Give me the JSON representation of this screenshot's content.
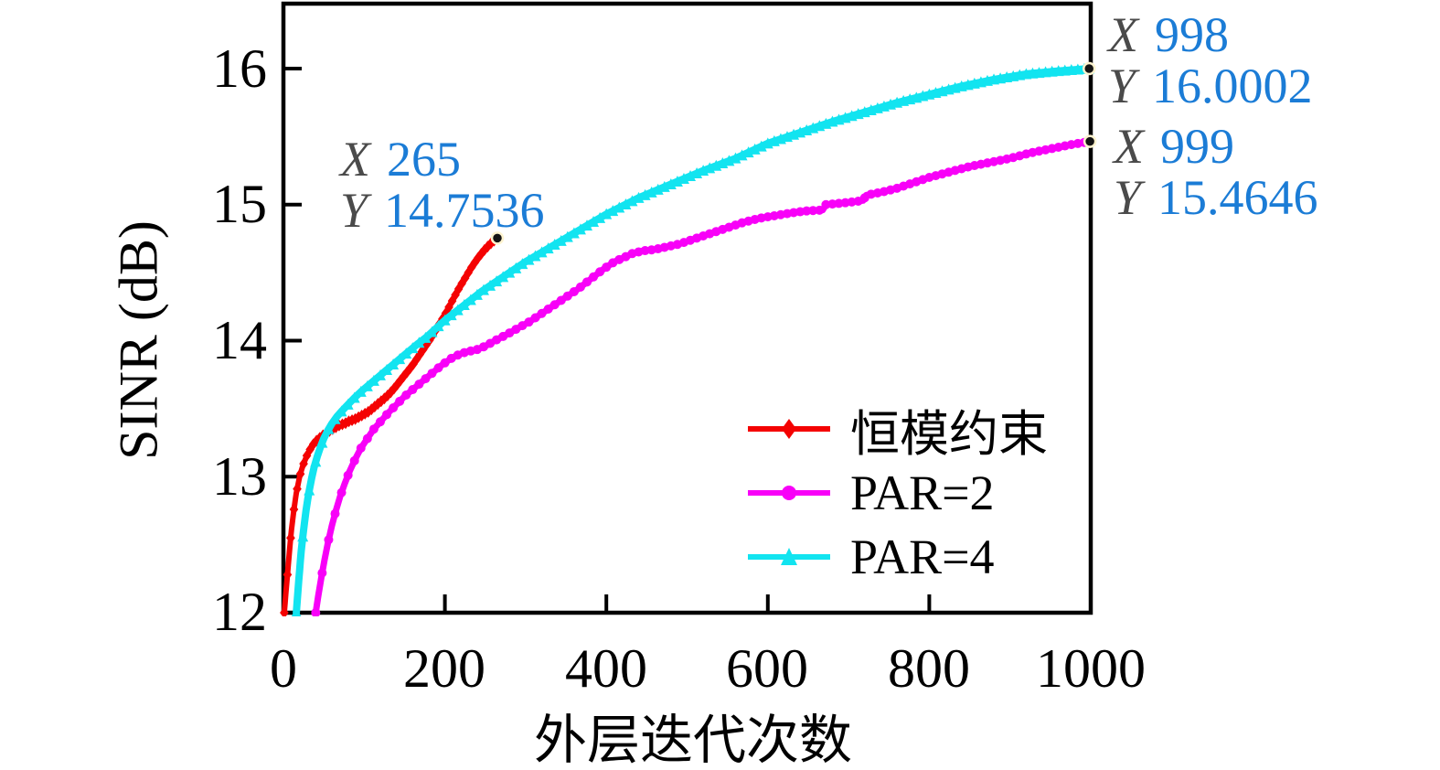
{
  "axes": {
    "xlabel": "外层迭代次数",
    "ylabel": "SINR (dB)",
    "x_tick_labels": [
      "0",
      "200",
      "400",
      "600",
      "800",
      "1000"
    ],
    "y_tick_labels": [
      "12",
      "13",
      "14",
      "15",
      "16"
    ],
    "x_ticks": [
      0,
      200,
      400,
      600,
      800,
      1000
    ],
    "y_ticks": [
      12,
      13,
      14,
      15,
      16
    ],
    "xlim": [
      0,
      1000
    ],
    "ylim": [
      12,
      16.47
    ],
    "axis_color": "#000000",
    "grid": "off"
  },
  "legend": {
    "position": "lower-right-inside",
    "items": [
      {
        "label": "恒模约束",
        "color": "#f40202",
        "marker": "diamond"
      },
      {
        "label": "PAR=2",
        "color": "#f800f8",
        "marker": "circle"
      },
      {
        "label": "PAR=4",
        "color": "#12e4f0",
        "marker": "triangle"
      }
    ]
  },
  "datatips": {
    "label_color": "#4a4a4a",
    "value_color": "#1b7cd6",
    "red": {
      "x_label": "X",
      "x_value": "265",
      "y_label": "Y",
      "y_value": "14.7536"
    },
    "cyan": {
      "x_label": "X",
      "x_value": "998",
      "y_label": "Y",
      "y_value": "16.0002"
    },
    "magenta": {
      "x_label": "X",
      "x_value": "999",
      "y_label": "Y",
      "y_value": "15.4646"
    }
  },
  "chart_data": {
    "type": "line",
    "title": "",
    "xlabel": "外层迭代次数",
    "ylabel": "SINR (dB)",
    "xlim": [
      0,
      1000
    ],
    "ylim": [
      12,
      16.47
    ],
    "legend_position": "lower right inside",
    "series": [
      {
        "name": "恒模约束",
        "color": "#f40202",
        "marker": "diamond",
        "line_width": 6,
        "marker_step": 4,
        "end_dot": true,
        "points": [
          [
            1,
            12.0
          ],
          [
            2,
            12.07
          ],
          [
            3,
            12.14
          ],
          [
            4,
            12.21
          ],
          [
            5,
            12.28
          ],
          [
            6,
            12.35
          ],
          [
            7,
            12.42
          ],
          [
            8,
            12.49
          ],
          [
            9,
            12.55
          ],
          [
            10,
            12.61
          ],
          [
            11,
            12.66
          ],
          [
            12,
            12.71
          ],
          [
            13,
            12.76
          ],
          [
            14,
            12.8
          ],
          [
            15,
            12.84
          ],
          [
            16,
            12.88
          ],
          [
            17,
            12.91
          ],
          [
            18,
            12.94
          ],
          [
            19,
            12.97
          ],
          [
            20,
            13.0
          ],
          [
            22,
            13.04
          ],
          [
            24,
            13.08
          ],
          [
            26,
            13.11
          ],
          [
            28,
            13.14
          ],
          [
            30,
            13.17
          ],
          [
            33,
            13.2
          ],
          [
            36,
            13.23
          ],
          [
            40,
            13.26
          ],
          [
            44,
            13.28
          ],
          [
            48,
            13.3
          ],
          [
            53,
            13.32
          ],
          [
            58,
            13.34
          ],
          [
            64,
            13.36
          ],
          [
            70,
            13.38
          ],
          [
            76,
            13.39
          ],
          [
            82,
            13.41
          ],
          [
            88,
            13.42
          ],
          [
            94,
            13.44
          ],
          [
            100,
            13.46
          ],
          [
            106,
            13.48
          ],
          [
            112,
            13.51
          ],
          [
            120,
            13.55
          ],
          [
            128,
            13.59
          ],
          [
            136,
            13.64
          ],
          [
            144,
            13.7
          ],
          [
            152,
            13.76
          ],
          [
            160,
            13.82
          ],
          [
            168,
            13.89
          ],
          [
            176,
            13.96
          ],
          [
            184,
            14.03
          ],
          [
            192,
            14.11
          ],
          [
            200,
            14.19
          ],
          [
            208,
            14.28
          ],
          [
            216,
            14.37
          ],
          [
            224,
            14.45
          ],
          [
            232,
            14.53
          ],
          [
            240,
            14.6
          ],
          [
            248,
            14.66
          ],
          [
            256,
            14.71
          ],
          [
            261,
            14.735
          ],
          [
            265,
            14.7536
          ]
        ]
      },
      {
        "name": "PAR=2",
        "color": "#f800f8",
        "marker": "circle",
        "line_width": 7,
        "marker_step": 8,
        "end_dot": true,
        "points": [
          [
            40,
            12.0
          ],
          [
            43,
            12.12
          ],
          [
            47,
            12.26
          ],
          [
            51,
            12.39
          ],
          [
            55,
            12.51
          ],
          [
            60,
            12.64
          ],
          [
            65,
            12.75
          ],
          [
            70,
            12.85
          ],
          [
            76,
            12.95
          ],
          [
            82,
            13.04
          ],
          [
            89,
            13.13
          ],
          [
            96,
            13.21
          ],
          [
            104,
            13.28
          ],
          [
            112,
            13.35
          ],
          [
            121,
            13.41
          ],
          [
            130,
            13.47
          ],
          [
            140,
            13.53
          ],
          [
            150,
            13.59
          ],
          [
            160,
            13.64
          ],
          [
            172,
            13.7
          ],
          [
            184,
            13.76
          ],
          [
            196,
            13.82
          ],
          [
            208,
            13.87
          ],
          [
            218,
            13.9
          ],
          [
            228,
            13.92
          ],
          [
            238,
            13.93
          ],
          [
            250,
            13.96
          ],
          [
            262,
            14.0
          ],
          [
            275,
            14.04
          ],
          [
            290,
            14.09
          ],
          [
            305,
            14.14
          ],
          [
            320,
            14.2
          ],
          [
            335,
            14.26
          ],
          [
            350,
            14.32
          ],
          [
            365,
            14.38
          ],
          [
            380,
            14.45
          ],
          [
            395,
            14.52
          ],
          [
            410,
            14.58
          ],
          [
            425,
            14.62
          ],
          [
            432,
            14.64
          ],
          [
            445,
            14.66
          ],
          [
            460,
            14.67
          ],
          [
            475,
            14.69
          ],
          [
            490,
            14.71
          ],
          [
            510,
            14.75
          ],
          [
            530,
            14.79
          ],
          [
            550,
            14.83
          ],
          [
            570,
            14.87
          ],
          [
            590,
            14.9
          ],
          [
            610,
            14.92
          ],
          [
            630,
            14.94
          ],
          [
            650,
            14.955
          ],
          [
            668,
            14.96
          ],
          [
            672,
            15.0
          ],
          [
            690,
            15.01
          ],
          [
            705,
            15.02
          ],
          [
            718,
            15.03
          ],
          [
            722,
            15.07
          ],
          [
            740,
            15.09
          ],
          [
            760,
            15.12
          ],
          [
            780,
            15.16
          ],
          [
            800,
            15.2
          ],
          [
            825,
            15.24
          ],
          [
            850,
            15.28
          ],
          [
            875,
            15.31
          ],
          [
            900,
            15.34
          ],
          [
            925,
            15.38
          ],
          [
            950,
            15.41
          ],
          [
            975,
            15.44
          ],
          [
            999,
            15.4646
          ]
        ]
      },
      {
        "name": "PAR=4",
        "color": "#12e4f0",
        "marker": "triangle",
        "line_width": 8,
        "marker_step": 8,
        "end_dot": true,
        "points": [
          [
            16,
            12.0
          ],
          [
            17,
            12.08
          ],
          [
            18,
            12.16
          ],
          [
            19,
            12.24
          ],
          [
            20,
            12.31
          ],
          [
            21,
            12.38
          ],
          [
            22,
            12.45
          ],
          [
            24,
            12.56
          ],
          [
            26,
            12.66
          ],
          [
            28,
            12.75
          ],
          [
            30,
            12.83
          ],
          [
            32,
            12.9
          ],
          [
            35,
            12.99
          ],
          [
            38,
            13.07
          ],
          [
            42,
            13.15
          ],
          [
            46,
            13.22
          ],
          [
            50,
            13.28
          ],
          [
            55,
            13.34
          ],
          [
            60,
            13.39
          ],
          [
            66,
            13.44
          ],
          [
            72,
            13.48
          ],
          [
            80,
            13.53
          ],
          [
            88,
            13.58
          ],
          [
            97,
            13.63
          ],
          [
            107,
            13.68
          ],
          [
            117,
            13.73
          ],
          [
            127,
            13.78
          ],
          [
            137,
            13.83
          ],
          [
            147,
            13.88
          ],
          [
            157,
            13.93
          ],
          [
            167,
            13.98
          ],
          [
            178,
            14.03
          ],
          [
            189,
            14.09
          ],
          [
            200,
            14.15
          ],
          [
            215,
            14.22
          ],
          [
            230,
            14.29
          ],
          [
            245,
            14.36
          ],
          [
            260,
            14.42
          ],
          [
            280,
            14.5
          ],
          [
            300,
            14.58
          ],
          [
            320,
            14.65
          ],
          [
            340,
            14.72
          ],
          [
            360,
            14.79
          ],
          [
            380,
            14.86
          ],
          [
            400,
            14.93
          ],
          [
            440,
            15.05
          ],
          [
            480,
            15.15
          ],
          [
            520,
            15.25
          ],
          [
            560,
            15.34
          ],
          [
            600,
            15.45
          ],
          [
            640,
            15.53
          ],
          [
            680,
            15.61
          ],
          [
            720,
            15.68
          ],
          [
            760,
            15.75
          ],
          [
            800,
            15.81
          ],
          [
            840,
            15.87
          ],
          [
            880,
            15.92
          ],
          [
            920,
            15.96
          ],
          [
            955,
            15.98
          ],
          [
            998,
            16.0002
          ]
        ]
      }
    ],
    "annotations": [
      {
        "series": "恒模约束",
        "x": 265,
        "y": 14.7536,
        "text": "X 265 Y 14.7536"
      },
      {
        "series": "PAR=4",
        "x": 998,
        "y": 16.0002,
        "text": "X 998 Y 16.0002"
      },
      {
        "series": "PAR=2",
        "x": 999,
        "y": 15.4646,
        "text": "X 999 Y 15.4646"
      }
    ]
  }
}
